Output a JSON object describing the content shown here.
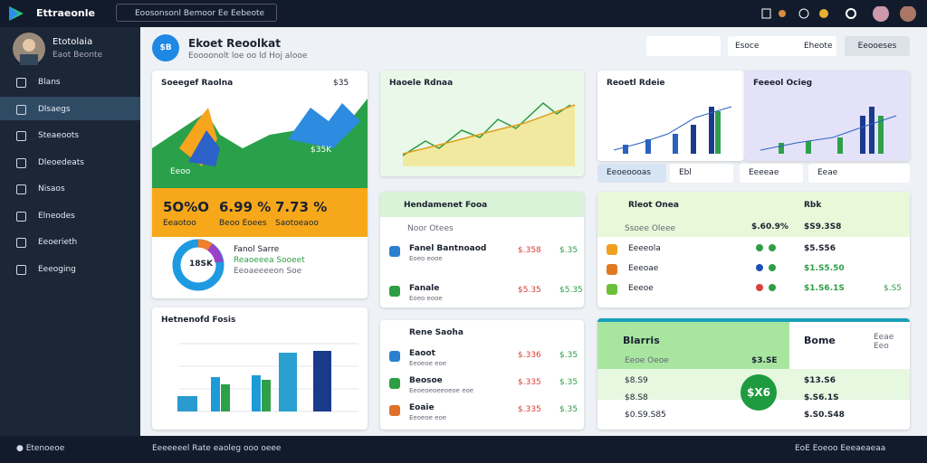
{
  "topbar": {
    "brand": "Ettraeonle",
    "search": "Eoosonsonl Bemoor Ee Eebeote"
  },
  "sidebar": {
    "user": {
      "name": "Etotolaia",
      "role": "Eaot Beonte"
    },
    "items": [
      "Blans",
      "Dlsaegs",
      "Steaeoots",
      "Dleoedeats",
      "Nisaos",
      "Elneodes",
      "Eeoerieth",
      "Eeeoging"
    ]
  },
  "header": {
    "badge": "$B",
    "title": "Ekoet Reoolkat",
    "subtitle": "Eoooonolt loe oo ld Hoj alooe",
    "search": "Esoce",
    "filter": "Eheote",
    "button": "Eeooeses"
  },
  "sales_card": {
    "title": "Soeegef Raolna",
    "value": "$35",
    "chart_label": "Eeoo",
    "chart_value": "$35K",
    "stats": [
      {
        "value": "5O%O",
        "label": "Eeaotoo"
      },
      {
        "value": "6.99 %",
        "label": "Beoo Eoees"
      },
      {
        "value": "7.73 %",
        "label": "Saotoeaoo"
      }
    ],
    "donut_label": "18SK",
    "legend": [
      "Fanol Sarre",
      "Reaoeeea Sooeet",
      "Eeoaeeeeon Soe"
    ]
  },
  "bar_card": {
    "title": "Hetnenofd Fosis"
  },
  "line_card": {
    "title": "Haoele Rdnaa"
  },
  "list_card": {
    "title": "Hendamenet Fooa",
    "header": "Noor Otees",
    "rows": [
      [
        "Fanel Bantnoaod",
        "Eoeo eooe",
        "$.358",
        "$.35"
      ],
      [
        "Fanale",
        "Eoeo eooe",
        "$5.35",
        "$5.35"
      ]
    ]
  },
  "rene_card": {
    "title": "Rene Saoha",
    "rows": [
      [
        "Eaoot",
        "Eeoeoe eoe",
        "$.336",
        "$.35"
      ],
      [
        "Beosoe",
        "Eeoeoeoeeoeoe eoe",
        "$.335",
        "$.35"
      ],
      [
        "Eoaie",
        "Eeoeoe eoe",
        "$.335",
        "$.35"
      ]
    ]
  },
  "mini_charts": [
    "Reoetl Rdeie",
    "Feeeol Ocieg"
  ],
  "tabs": [
    "Eeoeoooas",
    "Ebl",
    "Eeeeae",
    "Eeae"
  ],
  "orders_card": {
    "title": "Rleot Onea",
    "subtitle": "Ssoee Oleee",
    "value": "$.60.9%",
    "side_title": "Rbk",
    "side_value": "$S9.3S8",
    "rows": [
      [
        "Eeeeola",
        "$5.S56"
      ],
      [
        "Eeeoae",
        "$1.S5.50"
      ],
      [
        "Eeeoe",
        "$1.S6.1S",
        "$.S5"
      ]
    ]
  },
  "balance_card": {
    "title": "Blarris",
    "side_title": "Bome",
    "side_note": "Eeae Eeo",
    "label": "Eeoe Oeoe",
    "value": "$3.SE",
    "circle": "$X6",
    "rows": [
      [
        "$8.S9",
        "$13.S6"
      ],
      [
        "$8.S8",
        "$.S6.1S"
      ],
      [
        "$0.S9.S85",
        "$.S0.S48"
      ]
    ]
  },
  "footer": {
    "left": "Etenoeoe",
    "center": "Eeeeeeel Rate eaoleg ooo oeee",
    "right": "EoE Eoeoo Eeeaeaeaa"
  }
}
